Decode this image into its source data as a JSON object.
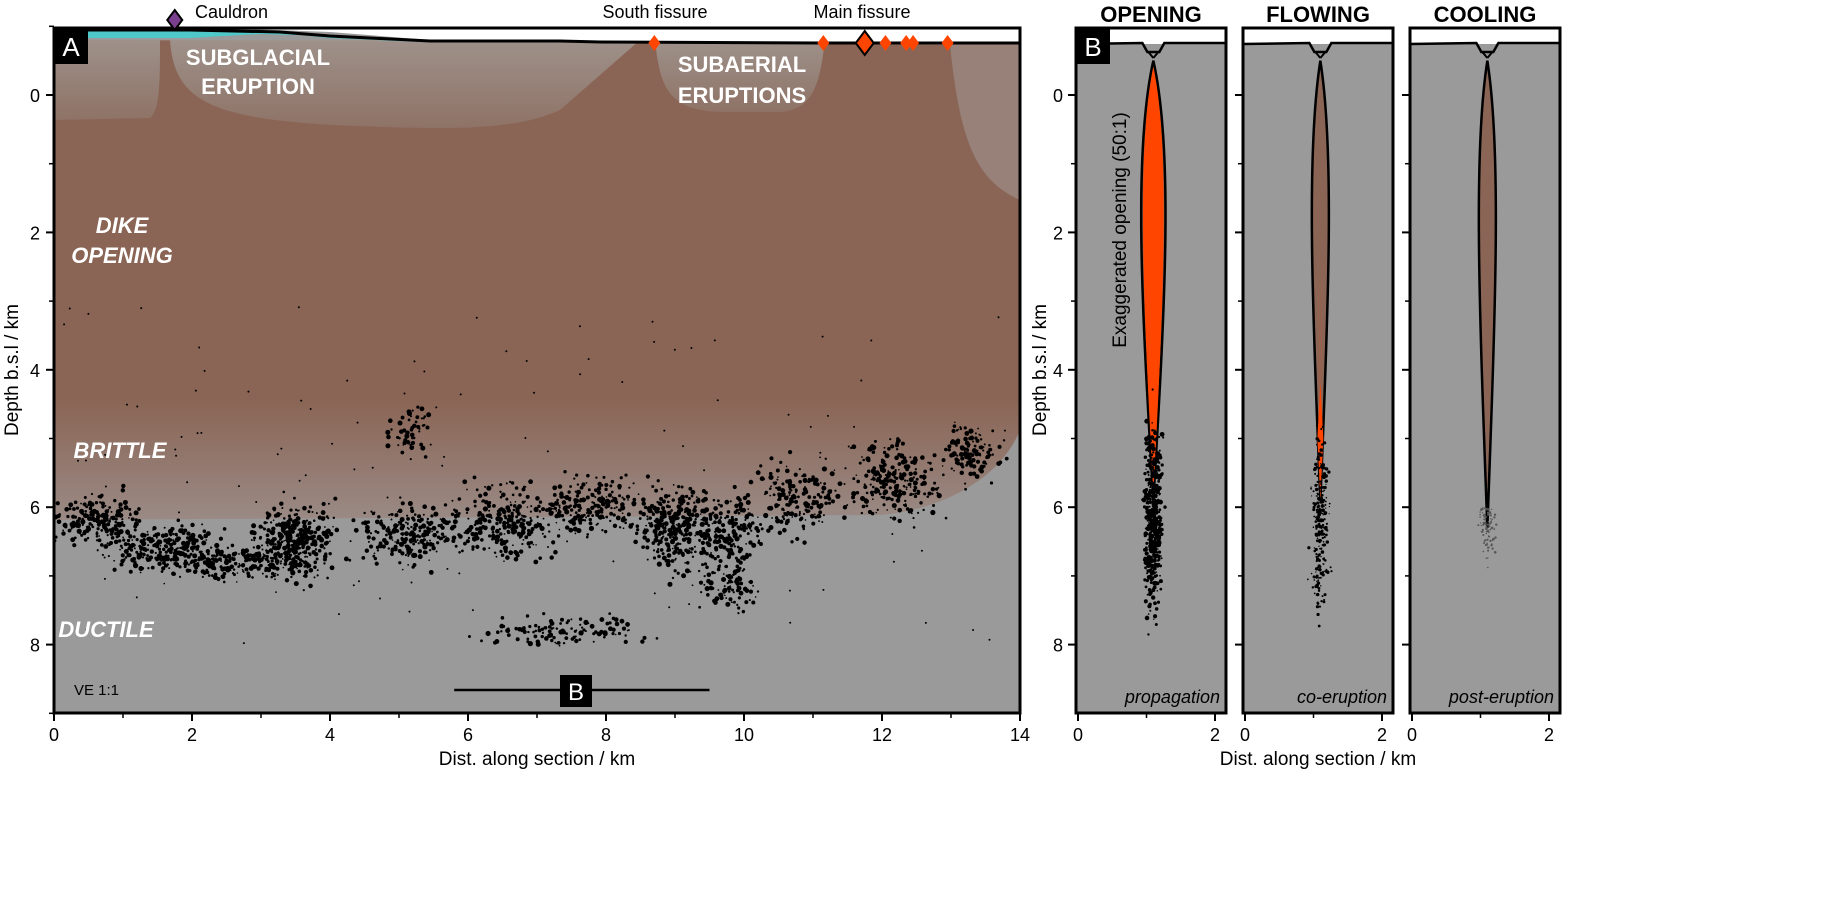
{
  "panel_a": {
    "label": "A",
    "annotations": {
      "cauldron": "Cauldron",
      "south_fissure": "South fissure",
      "main_fissure": "Main fissure",
      "subglacial_1": "SUBGLACIAL",
      "subglacial_2": "ERUPTION",
      "subaerial_1": "SUBAERIAL",
      "subaerial_2": "ERUPTIONS",
      "dike_1": "DIKE",
      "dike_2": "OPENING",
      "brittle": "BRITTLE",
      "ductile": "DUCTILE",
      "ve": "VE 1:1",
      "section_marker": "B"
    },
    "xlabel": "Dist. along section / km",
    "ylabel": "Depth b.s.l / km",
    "xticks": [
      "0",
      "2",
      "4",
      "6",
      "8",
      "10",
      "12",
      "14"
    ],
    "yticks": [
      "0",
      "2",
      "4",
      "6",
      "8"
    ],
    "xlim": [
      0,
      14
    ],
    "ylim": [
      -1.0,
      9
    ],
    "vents_km": [
      8.7,
      11.15,
      11.75,
      12.05,
      12.35,
      12.45,
      12.95
    ],
    "cauldron_km": 1.75,
    "section_b_range_km": [
      5.8,
      9.5
    ]
  },
  "panel_b": {
    "label": "B",
    "ylabel": "Depth b.s.l / km",
    "xlabel": "Dist. along section / km",
    "exaggeration_note": "Exaggerated opening (50:1)",
    "xticks": [
      "0",
      "2"
    ],
    "yticks": [
      "0",
      "2",
      "4",
      "6",
      "8"
    ],
    "subpanels": [
      {
        "title": "OPENING",
        "caption": "propagation",
        "fill": "#ff4500",
        "fill_bottom_km": 5.8
      },
      {
        "title": "FLOWING",
        "caption": "co-eruption",
        "fill": "#ff4500",
        "fill_bottom_km": 5.0
      },
      {
        "title": "COOLING",
        "caption": "post-eruption",
        "fill": "#8a6555",
        "fill_bottom_km": 6.3
      }
    ]
  },
  "colors": {
    "brown": "#8a6555",
    "gray": "#9a9a9a",
    "ice": "#4ec8c8",
    "lava": "#ff4500",
    "cauldron": "#7b3f8f"
  }
}
